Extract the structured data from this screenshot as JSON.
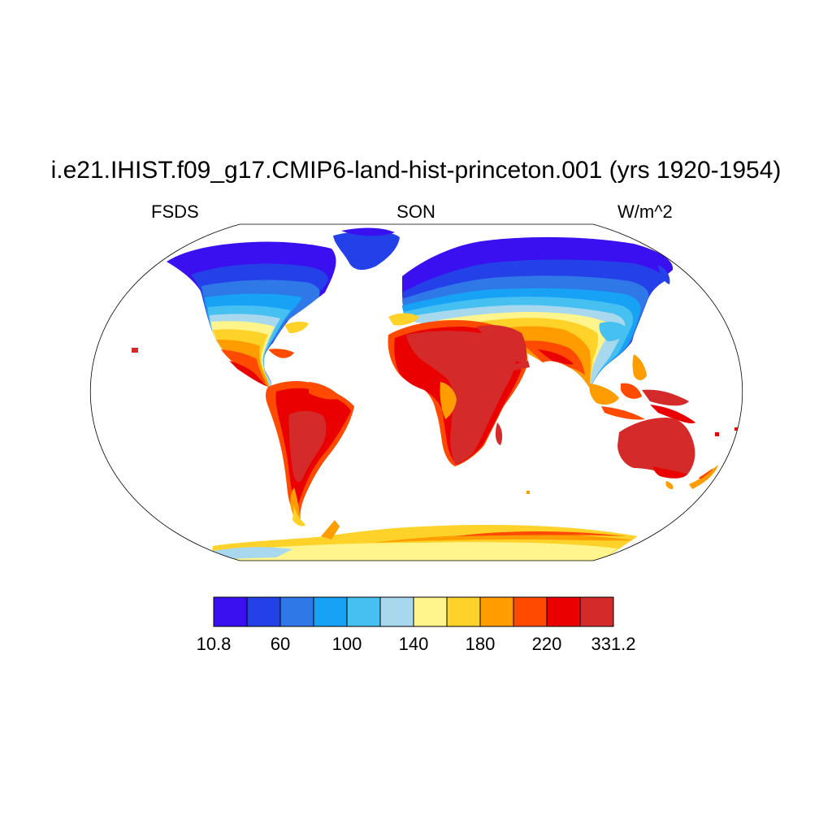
{
  "title": "i.e21.IHIST.f09_g17.CMIP6-land-hist-princeton.001 (yrs 1920-1954)",
  "subtitle_left": "FSDS",
  "subtitle_center": "SON",
  "subtitle_right": "W/m^2",
  "colorbar": {
    "colors": [
      "#3a10f0",
      "#2440e8",
      "#2f78e8",
      "#17a2f6",
      "#46c0f0",
      "#a8d8ee",
      "#fff58c",
      "#ffd22a",
      "#ff9c00",
      "#ff4a00",
      "#ea0000",
      "#d52a2a"
    ],
    "labels": [
      "10.8",
      "60",
      "100",
      "140",
      "180",
      "220",
      "331.2"
    ]
  }
}
